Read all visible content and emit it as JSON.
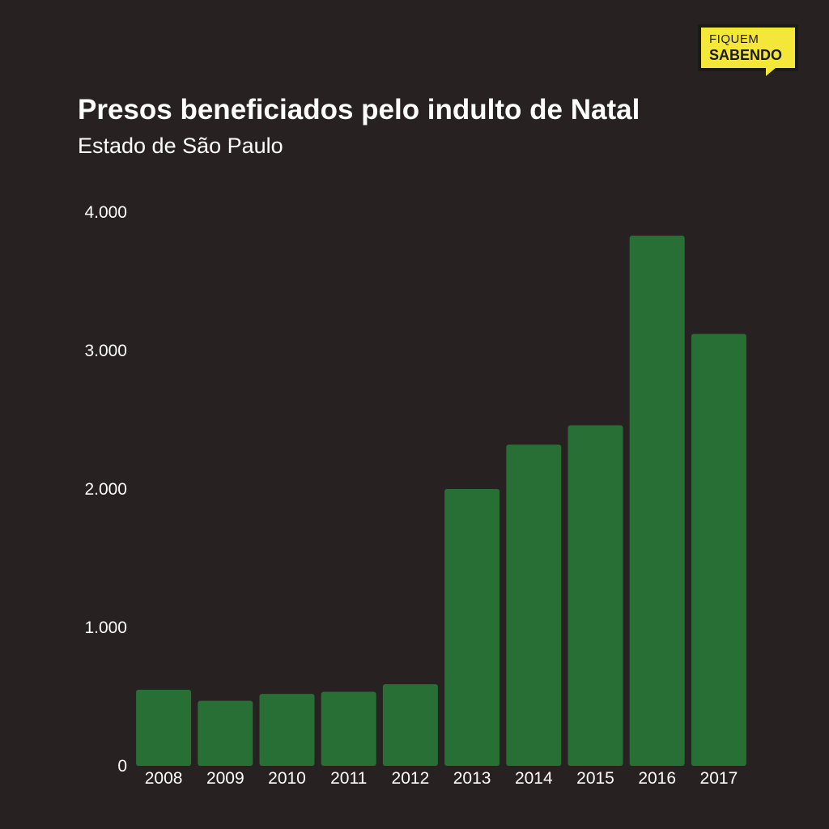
{
  "brand": {
    "logo_line1": "FIQUEM",
    "logo_line2": "SABENDO",
    "color": "#f5e63a"
  },
  "title": "Presos beneficiados pelo indulto de Natal",
  "subtitle": "Estado de São Paulo",
  "colors": {
    "background": "#282122",
    "bar": "#276f35",
    "text": "#ffffff"
  },
  "chart_data": {
    "type": "bar",
    "title": "Presos beneficiados pelo indulto de Natal",
    "subtitle": "Estado de São Paulo",
    "categories": [
      "2008",
      "2009",
      "2010",
      "2011",
      "2012",
      "2013",
      "2014",
      "2015",
      "2016",
      "2017"
    ],
    "values": [
      550,
      470,
      520,
      535,
      590,
      2000,
      2320,
      2460,
      3830,
      3120
    ],
    "ylim": [
      0,
      4000
    ],
    "yticks": [
      0,
      1000,
      2000,
      3000,
      4000
    ],
    "ytick_labels": [
      "0",
      "1.000",
      "2.000",
      "3.000",
      "4.000"
    ],
    "xlabel": "",
    "ylabel": "",
    "grid": false
  }
}
